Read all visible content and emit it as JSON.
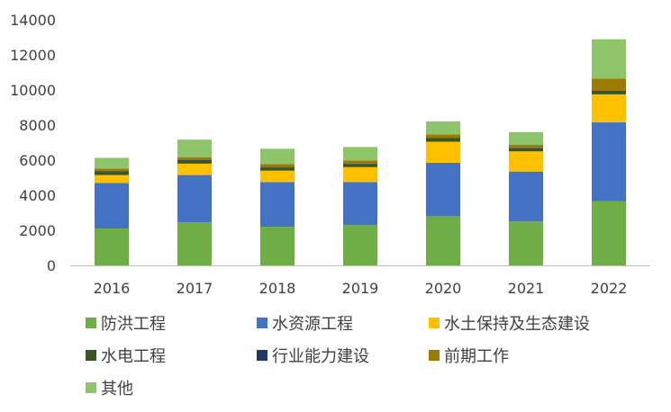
{
  "chart_data": {
    "type": "bar",
    "stacked": true,
    "categories": [
      "2016",
      "2017",
      "2018",
      "2019",
      "2020",
      "2021",
      "2022"
    ],
    "ylim": [
      0,
      14000
    ],
    "yticks": [
      "0",
      "2000",
      "4000",
      "6000",
      "8000",
      "10000",
      "12000",
      "14000"
    ],
    "grid": false,
    "legend_position": "bottom",
    "series": [
      {
        "name": "防洪工程",
        "color": "#70AD47",
        "values": [
          2100,
          2450,
          2200,
          2300,
          2800,
          2500,
          3650
        ]
      },
      {
        "name": "水资源工程",
        "color": "#4472C4",
        "values": [
          2600,
          2700,
          2550,
          2450,
          3050,
          2850,
          4500
        ]
      },
      {
        "name": "水土保持及生态建设",
        "color": "#FFC000",
        "values": [
          450,
          650,
          650,
          850,
          1200,
          1150,
          1600
        ]
      },
      {
        "name": "水电工程",
        "color": "#375623",
        "values": [
          180,
          170,
          180,
          180,
          180,
          170,
          170
        ]
      },
      {
        "name": "行业能力建设",
        "color": "#203864",
        "values": [
          30,
          30,
          30,
          30,
          30,
          30,
          30
        ]
      },
      {
        "name": "前期工作",
        "color": "#9C7B00",
        "values": [
          150,
          170,
          170,
          170,
          200,
          170,
          700
        ]
      },
      {
        "name": "其他",
        "color": "#8FC56A",
        "values": [
          620,
          1000,
          870,
          770,
          750,
          730,
          2240
        ]
      }
    ]
  }
}
